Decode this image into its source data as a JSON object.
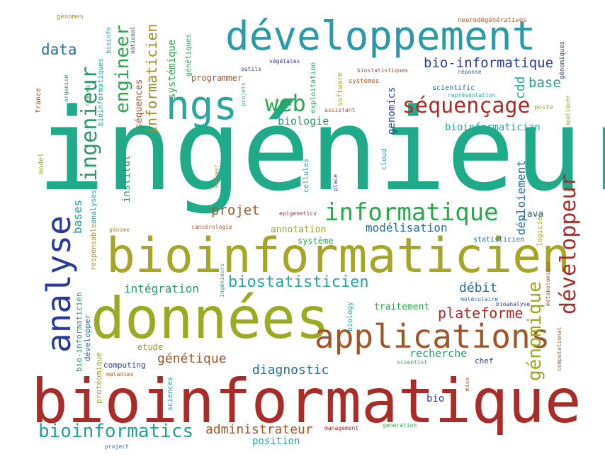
{
  "words": [
    {
      "text": "ingénieur",
      "color": "#1fab89",
      "orientation": "horizontal"
    },
    {
      "text": "bioinformatique",
      "color": "#a92c2a",
      "orientation": "horizontal"
    },
    {
      "text": "bioinformaticien",
      "color": "#a5a526",
      "orientation": "horizontal"
    },
    {
      "text": "données",
      "color": "#9aaa22",
      "orientation": "horizontal"
    },
    {
      "text": "développement",
      "color": "#2a9aa8",
      "orientation": "horizontal"
    },
    {
      "text": "analyse",
      "color": "#2a3b9a",
      "orientation": "vertical"
    },
    {
      "text": "applications",
      "color": "#a1562a",
      "orientation": "horizontal"
    },
    {
      "text": "ngs",
      "color": "#29a6a0",
      "orientation": "horizontal"
    },
    {
      "text": "informatique",
      "color": "#2aa84d",
      "orientation": "horizontal"
    },
    {
      "text": "développeur",
      "color": "#a92c2a",
      "orientation": "vertical"
    },
    {
      "text": "ingenieur",
      "color": "#2a9a6a",
      "orientation": "vertical"
    },
    {
      "text": "séquençage",
      "color": "#a92c2a",
      "orientation": "horizontal"
    },
    {
      "text": "web",
      "color": "#2aa84d",
      "orientation": "horizontal"
    },
    {
      "text": "bioinformatics",
      "color": "#23a098",
      "orientation": "horizontal"
    },
    {
      "text": "génomique",
      "color": "#9aaa22",
      "orientation": "vertical"
    },
    {
      "text": "engineer",
      "color": "#2aa84d",
      "orientation": "vertical"
    },
    {
      "text": "biostatisticien",
      "color": "#29a6a0",
      "orientation": "horizontal"
    },
    {
      "text": "plateforme",
      "color": "#a92c2a",
      "orientation": "horizontal"
    },
    {
      "text": "data",
      "color": "#2a6a9a",
      "orientation": "horizontal"
    },
    {
      "text": "informaticien",
      "color": "#a18f2a",
      "orientation": "vertical"
    },
    {
      "text": "bio-informatique",
      "color": "#2a3b9a",
      "orientation": "horizontal"
    },
    {
      "text": "projet",
      "color": "#a1562a",
      "orientation": "horizontal"
    },
    {
      "text": "administrateur",
      "color": "#a1562a",
      "orientation": "horizontal"
    },
    {
      "text": "diagnostic",
      "color": "#2a6a9a",
      "orientation": "horizontal"
    },
    {
      "text": "génétique",
      "color": "#a1562a",
      "orientation": "horizontal"
    },
    {
      "text": "débit",
      "color": "#2a6a9a",
      "orientation": "horizontal"
    },
    {
      "text": "base",
      "color": "#23a098",
      "orientation": "horizontal"
    },
    {
      "text": "modélisation",
      "color": "#2a6a9a",
      "orientation": "horizontal"
    },
    {
      "text": "intégration",
      "color": "#2a9a6a",
      "orientation": "horizontal"
    },
    {
      "text": "déploiement",
      "color": "#2a6a9a",
      "orientation": "vertical"
    },
    {
      "text": "cdd",
      "color": "#29a6a0",
      "orientation": "vertical"
    },
    {
      "text": "bases",
      "color": "#23a098",
      "orientation": "vertical"
    },
    {
      "text": "recherche",
      "color": "#2a9a6a",
      "orientation": "horizontal"
    },
    {
      "text": "biologie",
      "color": "#2a9a6a",
      "orientation": "horizontal"
    },
    {
      "text": "bioinformatician",
      "color": "#29a6a0",
      "orientation": "horizontal"
    },
    {
      "text": "systémique",
      "color": "#2aa84d",
      "orientation": "vertical"
    },
    {
      "text": "institut",
      "color": "#2a9a6a",
      "orientation": "vertical"
    },
    {
      "text": "genomics",
      "color": "#2a3b9a",
      "orientation": "vertical"
    },
    {
      "text": "séquences",
      "color": "#a1562a",
      "orientation": "vertical"
    },
    {
      "text": "position",
      "color": "#29a6a0",
      "orientation": "horizontal"
    },
    {
      "text": "annotation",
      "color": "#9aaa22",
      "orientation": "horizontal"
    },
    {
      "text": "traitement",
      "color": "#2aa84d",
      "orientation": "horizontal"
    },
    {
      "text": "java",
      "color": "#2a6a9a",
      "orientation": "horizontal"
    },
    {
      "text": "bio",
      "color": "#2a3b9a",
      "orientation": "horizontal"
    },
    {
      "text": "système",
      "color": "#2aa84d",
      "orientation": "horizontal"
    },
    {
      "text": "programmer",
      "color": "#a1562a",
      "orientation": "horizontal"
    },
    {
      "text": "etude",
      "color": "#a18f2a",
      "orientation": "horizontal"
    },
    {
      "text": "protéomique",
      "color": "#9aaa22",
      "orientation": "vertical"
    },
    {
      "text": "bio-informaticien",
      "color": "#2a9a6a",
      "orientation": "vertical"
    },
    {
      "text": "développer",
      "color": "#2a6a9a",
      "orientation": "vertical"
    },
    {
      "text": "computing",
      "color": "#2a3b9a",
      "orientation": "horizontal"
    },
    {
      "text": "responsable",
      "color": "#a18f2a",
      "orientation": "vertical"
    },
    {
      "text": "génétiques",
      "color": "#2aa84d",
      "orientation": "vertical"
    },
    {
      "text": "exploitation",
      "color": "#2aa84d",
      "orientation": "vertical"
    },
    {
      "text": "software",
      "color": "#a5a526",
      "orientation": "vertical"
    },
    {
      "text": "bioinformatiques",
      "color": "#23a098",
      "orientation": "vertical"
    },
    {
      "text": "scientific",
      "color": "#2a6a9a",
      "orientation": "horizontal"
    },
    {
      "text": "statisticien",
      "color": "#2a6a9a",
      "orientation": "horizontal"
    },
    {
      "text": "logiciel",
      "color": "#9aaa22",
      "orientation": "vertical"
    },
    {
      "text": "chef",
      "color": "#2a3b9a",
      "orientation": "horizontal"
    },
    {
      "text": "cloud",
      "color": "#29a6a0",
      "orientation": "vertical"
    },
    {
      "text": "cellules",
      "color": "#29a6a0",
      "orientation": "vertical"
    },
    {
      "text": "france",
      "color": "#a1562a",
      "orientation": "vertical"
    },
    {
      "text": "model",
      "color": "#9aaa22",
      "orientation": "vertical"
    },
    {
      "text": "analyses",
      "color": "#23a098",
      "orientation": "vertical"
    },
    {
      "text": "sciences",
      "color": "#23a098",
      "orientation": "vertical"
    },
    {
      "text": "biology",
      "color": "#23a098",
      "orientation": "vertical"
    },
    {
      "text": "génomes",
      "color": "#a18f2a",
      "orientation": "horizontal"
    },
    {
      "text": "bioinfo",
      "color": "#23a098",
      "orientation": "vertical"
    },
    {
      "text": "national",
      "color": "#2a3b9a",
      "orientation": "vertical"
    },
    {
      "text": "neurodégénératives",
      "color": "#a1562a",
      "orientation": "horizontal"
    },
    {
      "text": "génomiques",
      "color": "#2a3b9a",
      "orientation": "vertical"
    },
    {
      "text": "végétales",
      "color": "#2a3b9a",
      "orientation": "horizontal"
    },
    {
      "text": "outils",
      "color": "#2a3b9a",
      "orientation": "horizontal"
    },
    {
      "text": "biostatistiques",
      "color": "#a1562a",
      "orientation": "horizontal"
    },
    {
      "text": "réponse",
      "color": "#2a6a9a",
      "orientation": "horizontal"
    },
    {
      "text": "représentation",
      "color": "#29a6a0",
      "orientation": "horizontal"
    },
    {
      "text": "systèmes",
      "color": "#a1562a",
      "orientation": "horizontal"
    },
    {
      "text": "projets",
      "color": "#29a6a0",
      "orientation": "vertical"
    },
    {
      "text": "assistant",
      "color": "#a1562a",
      "orientation": "horizontal"
    },
    {
      "text": "poste",
      "color": "#9aaa22",
      "orientation": "horizontal"
    },
    {
      "text": "appliquée",
      "color": "#9aaa22",
      "orientation": "vertical"
    },
    {
      "text": "organism",
      "color": "#2a9a6a",
      "orientation": "vertical"
    },
    {
      "text": "rnaseq",
      "color": "#2a9a6a",
      "orientation": "vertical"
    },
    {
      "text": "serveur",
      "color": "#a18f2a",
      "orientation": "vertical"
    },
    {
      "text": "place",
      "color": "#2a3b9a",
      "orientation": "vertical"
    },
    {
      "text": "epigenetics",
      "color": "#a92c2a",
      "orientation": "horizontal"
    },
    {
      "text": "génome",
      "color": "#a18f2a",
      "orientation": "horizontal"
    },
    {
      "text": "cancérologie",
      "color": "#a1562a",
      "orientation": "horizontal"
    },
    {
      "text": "ingénieurs",
      "color": "#23a098",
      "orientation": "vertical"
    },
    {
      "text": "moléculaire",
      "color": "#2a6a9a",
      "orientation": "horizontal"
    },
    {
      "text": "bioanalyse",
      "color": "#2a3b9a",
      "orientation": "horizontal"
    },
    {
      "text": "métabolomique",
      "color": "#a1562a",
      "orientation": "vertical"
    },
    {
      "text": "computational",
      "color": "#a1562a",
      "orientation": "vertical"
    },
    {
      "text": "scientist",
      "color": "#2aa84d",
      "orientation": "horizontal"
    },
    {
      "text": "maladies",
      "color": "#a1562a",
      "orientation": "horizontal"
    },
    {
      "text": "mise",
      "color": "#a1562a",
      "orientation": "vertical"
    },
    {
      "text": "management",
      "color": "#a92c2a",
      "orientation": "horizontal"
    },
    {
      "text": "generation",
      "color": "#2aa84d",
      "orientation": "horizontal"
    },
    {
      "text": "project",
      "color": "#2a6a9a",
      "orientation": "horizontal"
    }
  ]
}
